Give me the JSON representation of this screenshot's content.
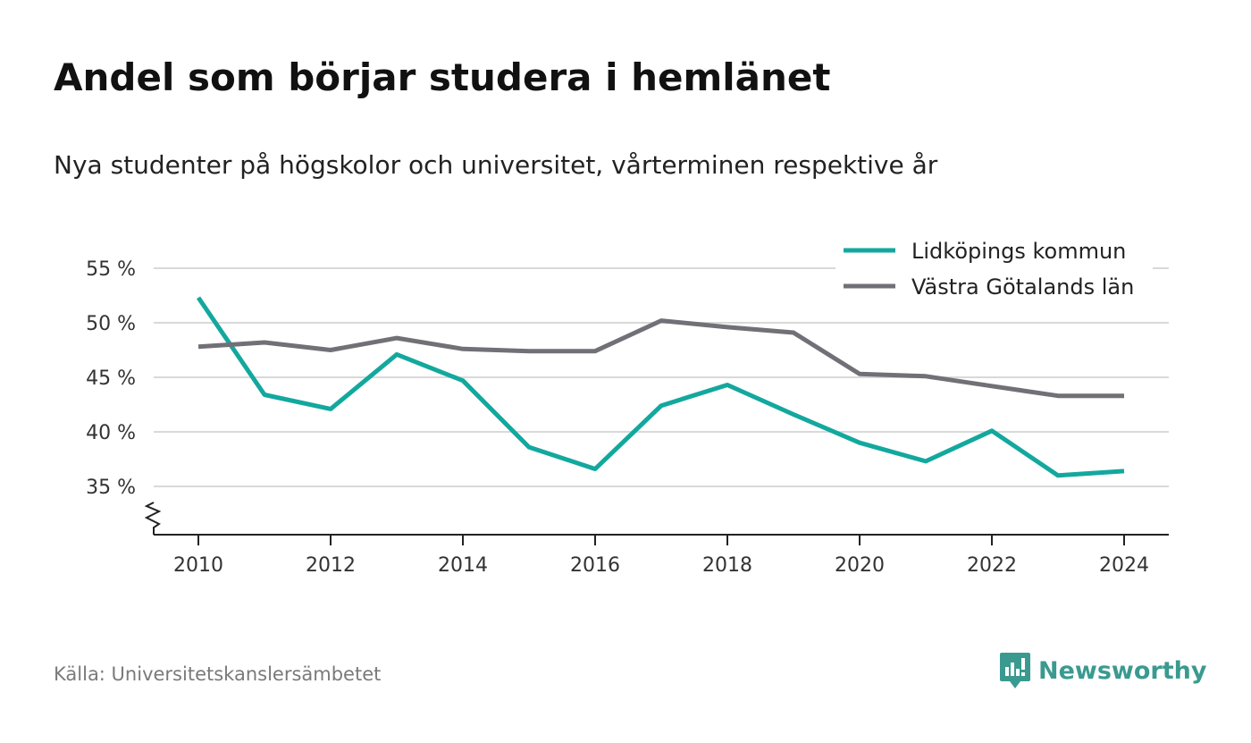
{
  "title": "Andel som börjar studera i hemlänet",
  "subtitle": "Nya studenter på högskolor och universitet, vårterminen respektive år",
  "source": "Källa: Universitetskanslersämbetet",
  "brand": {
    "name": "Newsworthy",
    "color": "#3a9a90",
    "icon": "newsworthy-chart-bubble-icon"
  },
  "chart_data": {
    "type": "line",
    "x": [
      2010,
      2011,
      2012,
      2013,
      2014,
      2015,
      2016,
      2017,
      2018,
      2019,
      2020,
      2021,
      2022,
      2023,
      2024
    ],
    "x_ticks": [
      2010,
      2012,
      2014,
      2016,
      2018,
      2020,
      2022,
      2024
    ],
    "x_tick_labels": [
      "2010",
      "2012",
      "2014",
      "2016",
      "2018",
      "2020",
      "2022",
      "2024"
    ],
    "y_ticks": [
      35,
      40,
      45,
      50,
      55
    ],
    "y_tick_labels": [
      "35 %",
      "40 %",
      "45 %",
      "50 %",
      "55 %"
    ],
    "ylim": [
      30.5,
      55
    ],
    "xlim": [
      2009.3,
      2024.7
    ],
    "y_axis_break": true,
    "grid": "horizontal",
    "legend_position": "top-right",
    "series": [
      {
        "name": "Lidköpings kommun",
        "color": "#13a89e",
        "values": [
          52.3,
          43.4,
          42.1,
          47.1,
          44.7,
          38.6,
          36.6,
          42.4,
          44.3,
          41.6,
          39.0,
          37.3,
          40.1,
          36.0,
          36.4
        ]
      },
      {
        "name": "Västra Götalands län",
        "color": "#727077",
        "values": [
          47.8,
          48.2,
          47.5,
          48.6,
          47.6,
          47.4,
          47.4,
          50.2,
          49.6,
          49.1,
          45.3,
          45.1,
          44.2,
          43.3,
          43.3
        ]
      }
    ]
  }
}
